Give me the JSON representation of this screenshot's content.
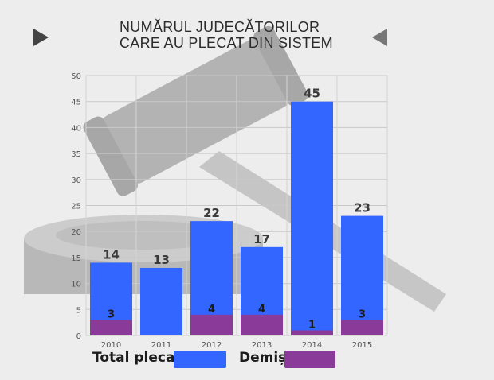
{
  "title_lines": [
    "NUMĂRUL JUDECĂTORILOR",
    "CARE AU PLECAT DIN SISTEM"
  ],
  "legend": {
    "total_label": "Total plecați",
    "demisi_label": "Demiși",
    "total_color": "#3366ff",
    "demisi_color": "#8a3b9a"
  },
  "nav": {
    "next_icon": "play-right-icon",
    "prev_icon": "play-left-icon"
  },
  "chart_data": {
    "type": "bar",
    "categories": [
      "2010",
      "2011",
      "2012",
      "2013",
      "2014",
      "2015"
    ],
    "series": [
      {
        "name": "Total plecați",
        "values": [
          14,
          13,
          22,
          17,
          45,
          23
        ],
        "labels": [
          "14",
          "",
          "22",
          "17",
          "45",
          "23"
        ],
        "color": "#3366ff"
      },
      {
        "name": "Demiși",
        "values": [
          3,
          0,
          4,
          4,
          1,
          3
        ],
        "labels": [
          "3",
          "",
          "4",
          "4",
          "1",
          "3"
        ],
        "color": "#8a3b9a"
      }
    ],
    "extra_labels": [
      {
        "category": "2011",
        "text": "13"
      }
    ],
    "ylim": [
      0,
      50
    ],
    "yticks": [
      0,
      5,
      10,
      15,
      20,
      25,
      30,
      35,
      40,
      45,
      50
    ],
    "grid": true,
    "legend_position": "bottom"
  }
}
